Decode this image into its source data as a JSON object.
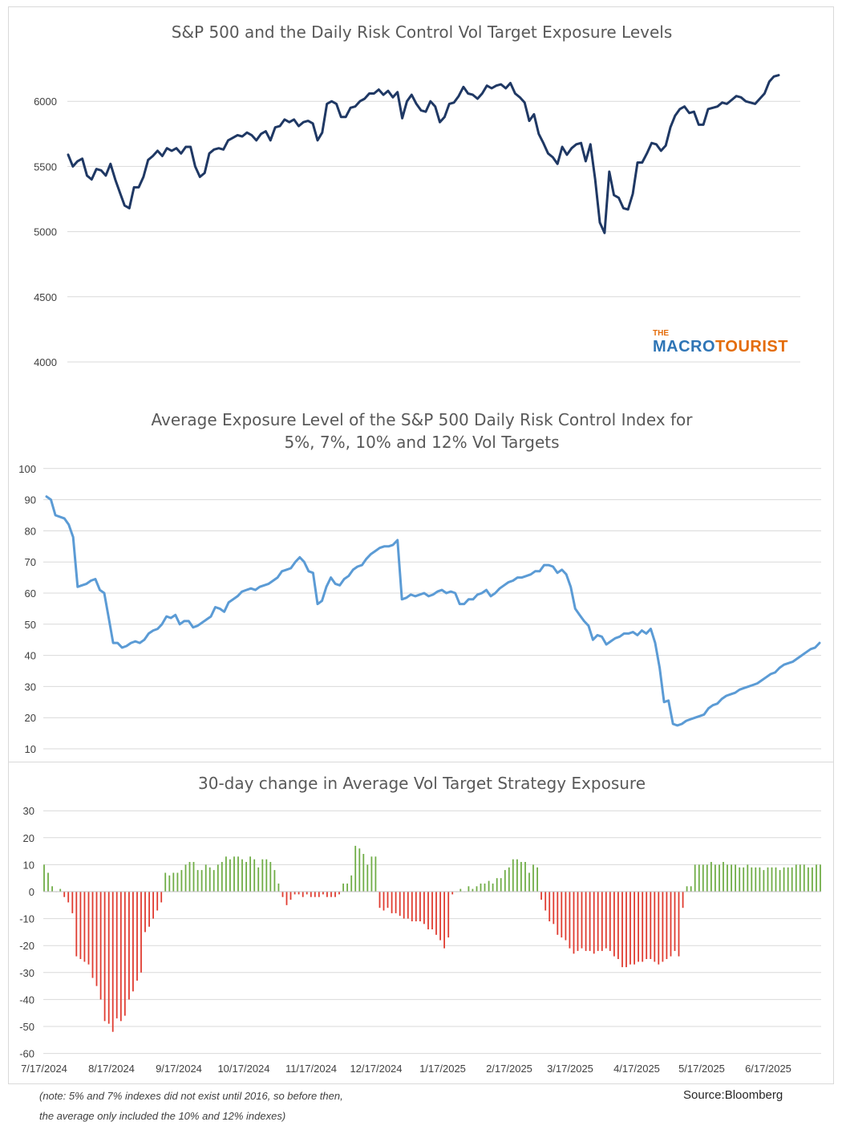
{
  "chart_data": [
    {
      "type": "line",
      "title": "S&P 500 and the Daily Risk Control Vol Target Exposure Levels",
      "ylim": [
        4000,
        6300
      ],
      "yticks": [
        4000,
        4500,
        5000,
        5500,
        6000
      ],
      "grid": true,
      "color": "#1f3864",
      "x_range": [
        "2024-07-17",
        "2025-07-22"
      ],
      "values": [
        5590,
        5500,
        5540,
        5560,
        5430,
        5400,
        5480,
        5470,
        5430,
        5520,
        5400,
        5300,
        5200,
        5180,
        5340,
        5340,
        5420,
        5550,
        5580,
        5620,
        5580,
        5640,
        5620,
        5640,
        5600,
        5650,
        5650,
        5500,
        5420,
        5450,
        5600,
        5630,
        5640,
        5630,
        5700,
        5720,
        5740,
        5730,
        5760,
        5740,
        5700,
        5750,
        5770,
        5700,
        5800,
        5810,
        5860,
        5840,
        5860,
        5810,
        5840,
        5850,
        5830,
        5700,
        5760,
        5980,
        6000,
        5980,
        5880,
        5880,
        5950,
        5960,
        6000,
        6020,
        6060,
        6060,
        6090,
        6050,
        6080,
        6030,
        6070,
        5870,
        6000,
        6050,
        5980,
        5930,
        5920,
        6000,
        5960,
        5840,
        5880,
        5980,
        5990,
        6040,
        6110,
        6060,
        6050,
        6020,
        6060,
        6120,
        6100,
        6120,
        6130,
        6100,
        6140,
        6060,
        6030,
        5990,
        5850,
        5900,
        5750,
        5680,
        5600,
        5570,
        5520,
        5650,
        5590,
        5640,
        5670,
        5680,
        5540,
        5670,
        5400,
        5070,
        4990,
        5460,
        5280,
        5260,
        5180,
        5170,
        5290,
        5530,
        5530,
        5600,
        5680,
        5670,
        5620,
        5660,
        5800,
        5890,
        5940,
        5960,
        5910,
        5920,
        5820,
        5820,
        5940,
        5950,
        5960,
        5990,
        5980,
        6010,
        6040,
        6030,
        6000,
        5990,
        5980,
        6020,
        6060,
        6150,
        6190,
        6200
      ]
    },
    {
      "type": "line",
      "title": "Average Exposure Level of the S&P 500 Daily Risk Control Index for\n5%, 7%, 10% and 12% Vol Targets",
      "ylim": [
        10,
        100
      ],
      "yticks": [
        10,
        20,
        30,
        40,
        50,
        60,
        70,
        80,
        90,
        100
      ],
      "grid": true,
      "color": "#5b9bd5",
      "x_range": [
        "2024-07-17",
        "2025-07-22"
      ],
      "values": [
        91,
        90,
        85,
        84.5,
        84,
        82,
        78,
        62,
        62.5,
        63,
        64,
        64.5,
        61,
        60,
        52,
        44,
        44,
        42.5,
        43,
        44,
        44.5,
        44,
        45,
        47,
        48,
        48.5,
        50,
        52.5,
        52,
        53,
        50,
        51,
        51,
        49,
        49.5,
        50.5,
        51.5,
        52.5,
        55.5,
        55,
        54,
        57,
        58,
        59,
        60.5,
        61,
        61.5,
        61,
        62,
        62.5,
        63,
        64,
        65,
        67,
        67.5,
        68,
        70,
        71.5,
        70,
        67,
        66.5,
        56.5,
        57.5,
        62,
        65,
        63,
        62.5,
        64.5,
        65.5,
        67.5,
        68.5,
        69,
        71,
        72.5,
        73.5,
        74.5,
        75,
        75,
        75.5,
        77,
        58,
        58.5,
        59.5,
        59,
        59.5,
        60,
        59,
        59.5,
        60.5,
        61,
        60,
        60.5,
        60,
        56.5,
        56.5,
        58,
        58,
        59.5,
        60,
        61,
        59,
        60,
        61.5,
        62.5,
        63.5,
        64,
        65,
        65,
        65.5,
        66,
        67,
        67,
        69,
        69,
        68.5,
        66.5,
        67.5,
        66,
        62,
        55,
        53,
        51,
        49.5,
        45,
        46.5,
        46,
        43.5,
        44.5,
        45.5,
        46,
        47,
        47,
        47.5,
        46.5,
        48,
        47,
        48.5,
        44,
        36,
        25,
        25.5,
        18,
        17.5,
        18,
        19,
        19.5,
        20,
        20.5,
        21,
        23,
        24,
        24.5,
        26,
        27,
        27.5,
        28,
        29,
        29.5,
        30,
        30.5,
        31,
        32,
        33,
        34,
        34.5,
        36,
        37,
        37.5,
        38,
        39,
        40,
        41,
        42,
        42.5,
        44
      ]
    },
    {
      "type": "bar",
      "title": "30-day change in Average Vol Target Strategy Exposure",
      "ylim": [
        -60,
        30
      ],
      "yticks": [
        -60,
        -50,
        -40,
        -30,
        -20,
        -10,
        0,
        10,
        20,
        30
      ],
      "grid": true,
      "positive_color": "#70ad47",
      "negative_color": "#e03c31",
      "xticks": [
        "7/17/2024",
        "8/17/2024",
        "9/17/2024",
        "10/17/2024",
        "11/17/2024",
        "12/17/2024",
        "1/17/2025",
        "2/17/2025",
        "3/17/2025",
        "4/17/2025",
        "5/17/2025",
        "6/17/2025"
      ],
      "x_range": [
        "2024-07-17",
        "2025-07-22"
      ],
      "values": [
        10,
        7,
        2,
        0,
        1,
        -2,
        -4,
        -8,
        -24,
        -25,
        -26,
        -27,
        -32,
        -35,
        -40,
        -48,
        -49,
        -52,
        -47,
        -48,
        -46,
        -40,
        -37,
        -33,
        -30,
        -15,
        -13,
        -10,
        -7,
        -4,
        7,
        6,
        7,
        7,
        8,
        10,
        11,
        11,
        8,
        8,
        10,
        9,
        8,
        10,
        11,
        13,
        12,
        13,
        13,
        12,
        11,
        13,
        12,
        9,
        12,
        12,
        11,
        8,
        3,
        -2,
        -5,
        -3,
        -1,
        -1,
        -2,
        -1,
        -2,
        -2,
        -2,
        -1,
        -2,
        -2,
        -2,
        -1,
        3,
        3,
        6,
        17,
        16,
        14,
        10,
        13,
        13,
        -6,
        -7,
        -6,
        -8,
        -8,
        -9,
        -10,
        -10,
        -11,
        -11,
        -11,
        -12,
        -14,
        -14,
        -16,
        -18,
        -21,
        -17,
        -1,
        0,
        1,
        0,
        2,
        1,
        2,
        3,
        3,
        4,
        3,
        5,
        5,
        8,
        9,
        12,
        12,
        11,
        11,
        7,
        10,
        9,
        -3,
        -7,
        -11,
        -12,
        -16,
        -17,
        -18,
        -21,
        -23,
        -22,
        -21,
        -22,
        -22,
        -23,
        -22,
        -22,
        -21,
        -22,
        -24,
        -25,
        -28,
        -28,
        -27,
        -27,
        -26,
        -26,
        -25,
        -25,
        -26,
        -27,
        -26,
        -25,
        -24,
        -22,
        -24,
        -6,
        2,
        2,
        10,
        10,
        10,
        10,
        11,
        10,
        10,
        11,
        10,
        10,
        10,
        9,
        9,
        10,
        9,
        9,
        9,
        8,
        9,
        9,
        9,
        8,
        9,
        9,
        9,
        10,
        10,
        10,
        9,
        9,
        10,
        10
      ]
    }
  ],
  "note_line1": "(note: 5% and 7% indexes did not exist until 2016, so before then,",
  "note_line2": "the average only included the 10% and 12% indexes)",
  "source": "Source:Bloomberg",
  "logo": {
    "small": "THE",
    "part1": "MACRO",
    "part2": "TOURIST",
    "color1": "#2e75b6",
    "color2": "#e46c0a"
  }
}
